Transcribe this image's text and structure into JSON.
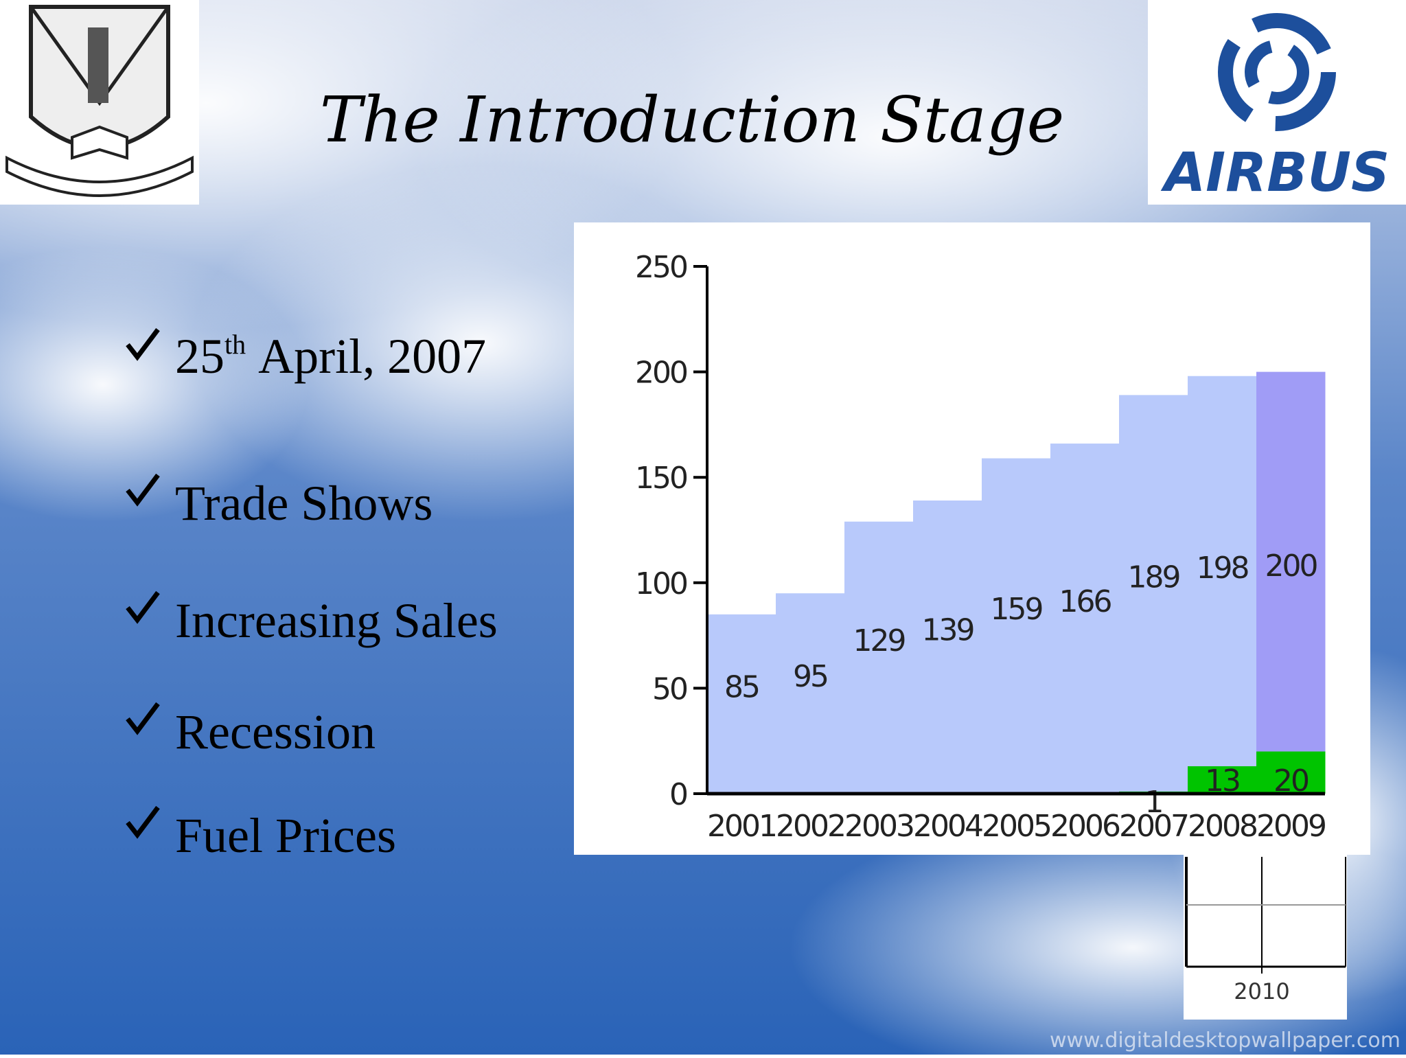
{
  "slide": {
    "title": "The Introduction Stage",
    "date_bullet": {
      "day": "25",
      "suffix": "th",
      "rest": "April, 2007"
    },
    "bullets": [
      "Trade Shows",
      "Increasing Sales",
      "Recession",
      "Fuel Prices"
    ],
    "logo_text": "AIRBUS",
    "fragment_label": "2010",
    "watermark": "www.digitaldesktopwallpaper.com"
  },
  "chart_data": {
    "type": "bar",
    "categories": [
      "2001",
      "2002",
      "2003",
      "2004",
      "2005",
      "2006",
      "2007",
      "2008",
      "2009"
    ],
    "series": [
      {
        "values": [
          85,
          95,
          129,
          139,
          159,
          166,
          189,
          198,
          200
        ],
        "colors": [
          "#b8c9fb",
          "#b8c9fb",
          "#b8c9fb",
          "#b8c9fb",
          "#b8c9fb",
          "#b8c9fb",
          "#b8c9fb",
          "#b8c9fb",
          "#a09cf6"
        ]
      },
      {
        "values": [
          null,
          null,
          null,
          null,
          null,
          null,
          1,
          13,
          20
        ],
        "color": "#00c400"
      }
    ],
    "ylim": [
      0,
      250
    ],
    "yticks": [
      0,
      50,
      100,
      150,
      200,
      250
    ],
    "grid": false
  }
}
